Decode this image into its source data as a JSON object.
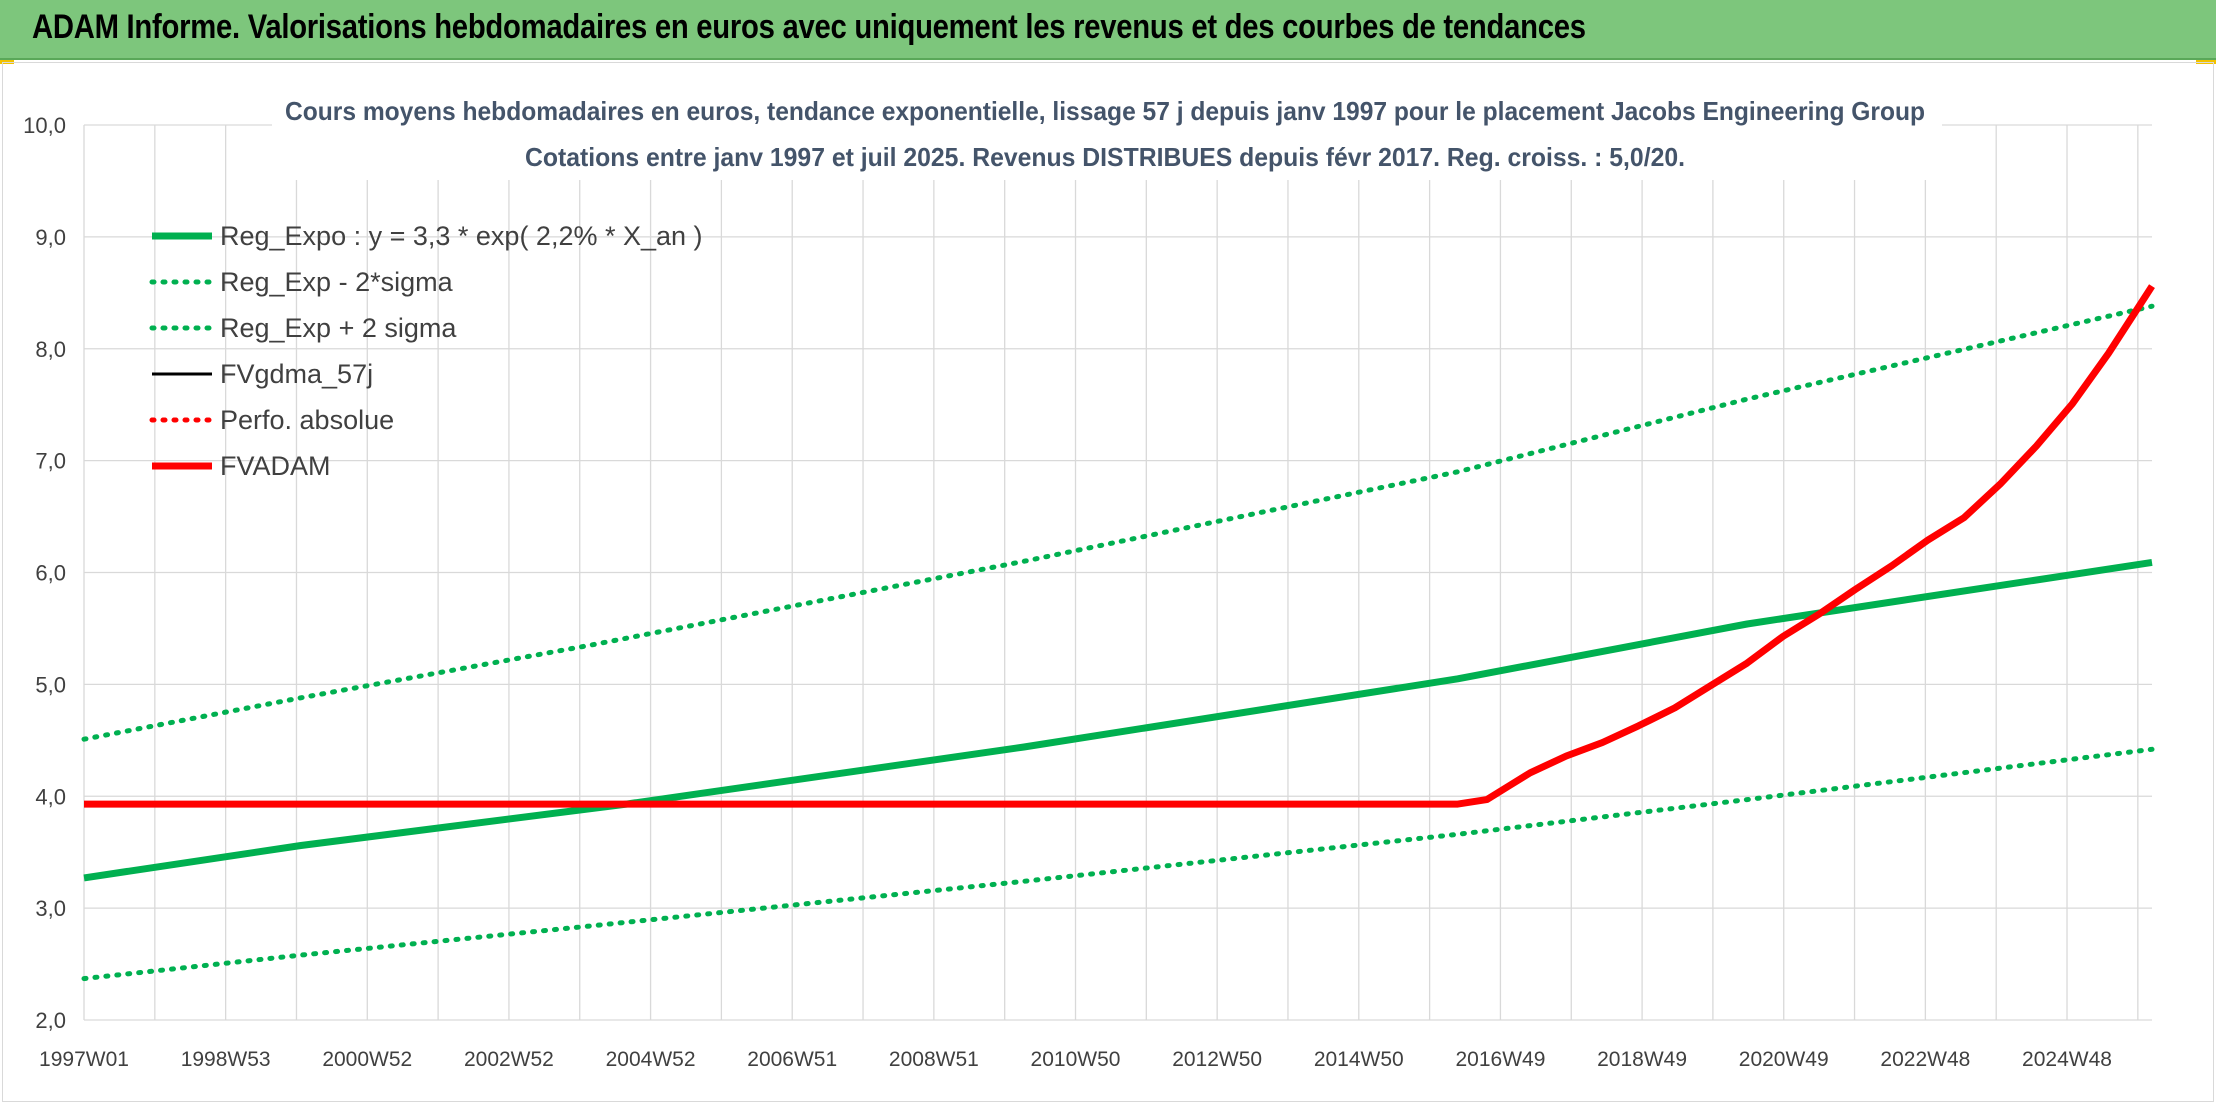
{
  "header": {
    "title": "ADAM Informe. Valorisations hebdomadaires en euros avec uniquement les revenus et des courbes de tendances"
  },
  "colors": {
    "banner": "#7dc67c",
    "reg_expo": "#00b050",
    "fvgdma": "#000000",
    "fvadam": "#ff0000",
    "grid": "#d9d9d9",
    "accent": "#f2c200"
  },
  "chart_data": {
    "type": "line",
    "title_line1": "Cours moyens hebdomadaires en euros, tendance exponentielle, lissage 57 j depuis janv 1997 pour le placement Jacobs Engineering Group",
    "title_line2": "Cotations entre janv 1997 et juil 2025. Revenus DISTRIBUES depuis févr 2017. Reg. croiss. : 5,0/20.",
    "x_ticks": [
      "1997W01",
      "1998W53",
      "2000W52",
      "2002W52",
      "2004W52",
      "2006W51",
      "2008W51",
      "2010W50",
      "2012W50",
      "2014W50",
      "2016W49",
      "2018W49",
      "2020W49",
      "2022W48",
      "2024W48"
    ],
    "y_ticks": [
      "2,0",
      "3,0",
      "4,0",
      "5,0",
      "6,0",
      "7,0",
      "8,0",
      "9,0",
      "10,0"
    ],
    "ylim": [
      2.0,
      10.0
    ],
    "xlim": [
      1997.0,
      2025.6
    ],
    "grid": true,
    "legend_position": "top-left",
    "series": [
      {
        "name": "Reg_Expo : y = 3,3 * exp( 2,2% *  X_an )",
        "style": "solid-thick",
        "color": "#00b050",
        "points": [
          [
            1997.0,
            3.27
          ],
          [
            2000.0,
            3.56
          ],
          [
            2004.5,
            3.93
          ],
          [
            2010.0,
            4.44
          ],
          [
            2016.0,
            5.05
          ],
          [
            2020.0,
            5.54
          ],
          [
            2025.6,
            6.09
          ]
        ]
      },
      {
        "name": "Reg_Exp - 2*sigma",
        "style": "dotted",
        "color": "#00b050",
        "points": [
          [
            1997.0,
            2.37
          ],
          [
            2000.0,
            2.58
          ],
          [
            2004.0,
            2.84
          ],
          [
            2010.0,
            3.24
          ],
          [
            2016.0,
            3.66
          ],
          [
            2020.0,
            3.97
          ],
          [
            2025.6,
            4.42
          ]
        ]
      },
      {
        "name": "Reg_Exp + 2 sigma",
        "style": "dotted",
        "color": "#00b050",
        "points": [
          [
            1997.0,
            4.51
          ],
          [
            2000.0,
            4.88
          ],
          [
            2004.0,
            5.35
          ],
          [
            2010.0,
            6.1
          ],
          [
            2016.0,
            6.9
          ],
          [
            2020.0,
            7.55
          ],
          [
            2025.6,
            8.38
          ]
        ]
      },
      {
        "name": "FVgdma_57j",
        "style": "solid",
        "color": "#000000",
        "points": [
          [
            1997.0,
            3.92
          ],
          [
            2016.0,
            3.92
          ],
          [
            2016.4,
            3.96
          ],
          [
            2016.7,
            4.08
          ],
          [
            2017.0,
            4.2
          ],
          [
            2017.5,
            4.35
          ],
          [
            2018.0,
            4.47
          ],
          [
            2018.5,
            4.62
          ],
          [
            2019.0,
            4.78
          ],
          [
            2019.5,
            4.98
          ],
          [
            2020.0,
            5.18
          ],
          [
            2020.5,
            5.42
          ],
          [
            2021.0,
            5.62
          ],
          [
            2021.5,
            5.84
          ],
          [
            2022.0,
            6.05
          ],
          [
            2022.5,
            6.28
          ],
          [
            2023.0,
            6.48
          ],
          [
            2023.5,
            6.78
          ],
          [
            2024.0,
            7.12
          ],
          [
            2024.5,
            7.5
          ],
          [
            2025.0,
            7.95
          ],
          [
            2025.5,
            8.45
          ],
          [
            2025.6,
            8.55
          ]
        ]
      },
      {
        "name": "Perfo. absolue",
        "style": "dotted",
        "color": "#ff0000",
        "points": []
      },
      {
        "name": "FVADAM",
        "style": "solid-thick",
        "color": "#ff0000",
        "points": [
          [
            1997.0,
            3.93
          ],
          [
            2016.0,
            3.93
          ],
          [
            2016.4,
            3.97
          ],
          [
            2016.7,
            4.09
          ],
          [
            2017.0,
            4.21
          ],
          [
            2017.5,
            4.36
          ],
          [
            2018.0,
            4.48
          ],
          [
            2018.5,
            4.63
          ],
          [
            2019.0,
            4.79
          ],
          [
            2019.5,
            4.99
          ],
          [
            2020.0,
            5.19
          ],
          [
            2020.5,
            5.43
          ],
          [
            2021.0,
            5.63
          ],
          [
            2021.5,
            5.85
          ],
          [
            2022.0,
            6.06
          ],
          [
            2022.5,
            6.29
          ],
          [
            2023.0,
            6.49
          ],
          [
            2023.5,
            6.79
          ],
          [
            2024.0,
            7.13
          ],
          [
            2024.5,
            7.51
          ],
          [
            2025.0,
            7.96
          ],
          [
            2025.5,
            8.46
          ],
          [
            2025.6,
            8.56
          ]
        ]
      }
    ]
  }
}
